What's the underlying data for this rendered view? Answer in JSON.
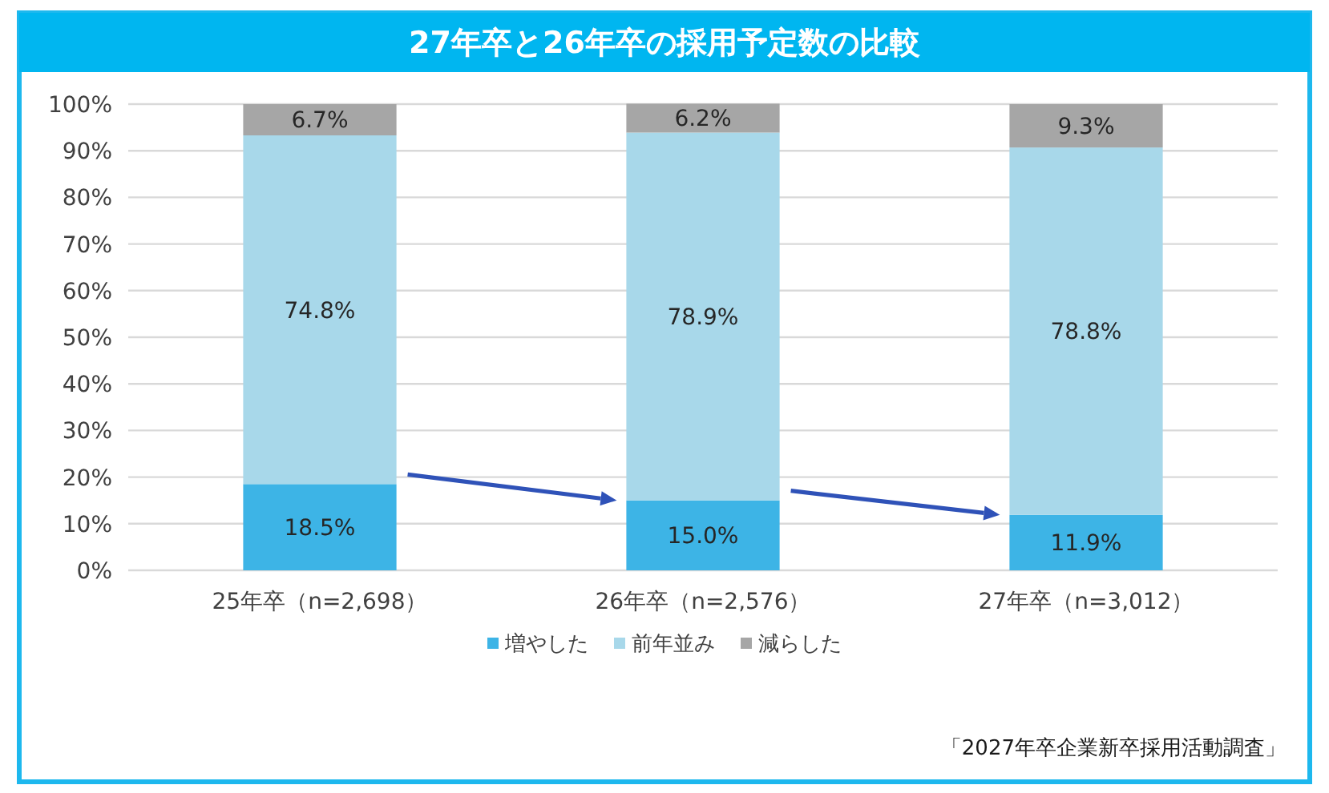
{
  "chart_data": {
    "type": "bar",
    "title": "27年卒と26年卒の採用予定数の比較",
    "categories": [
      "25年卒（n=2,698）",
      "26年卒（n=2,576）",
      "27年卒（n=3,012）"
    ],
    "stacked": true,
    "series": [
      {
        "name": "増やした",
        "color": "#3db4e6",
        "values": [
          18.5,
          15.0,
          11.9
        ],
        "value_labels": [
          "18.5%",
          "15.0%",
          "11.9%"
        ]
      },
      {
        "name": "前年並み",
        "color": "#a8d8ea",
        "values": [
          74.8,
          78.9,
          78.8
        ],
        "value_labels": [
          "74.8%",
          "78.9%",
          "78.8%"
        ]
      },
      {
        "name": "減らした",
        "color": "#a6a6a6",
        "values": [
          6.7,
          6.2,
          9.3
        ],
        "value_labels": [
          "6.7%",
          "6.2%",
          "9.3%"
        ]
      }
    ],
    "ylim": [
      0,
      100
    ],
    "yticks": [
      {
        "value": 0,
        "label": "0%"
      },
      {
        "value": 10,
        "label": "10%"
      },
      {
        "value": 20,
        "label": "20%"
      },
      {
        "value": 30,
        "label": "30%"
      },
      {
        "value": 40,
        "label": "40%"
      },
      {
        "value": 50,
        "label": "50%"
      },
      {
        "value": 60,
        "label": "60%"
      },
      {
        "value": 70,
        "label": "70%"
      },
      {
        "value": 80,
        "label": "80%"
      },
      {
        "value": 90,
        "label": "90%"
      },
      {
        "value": 100,
        "label": "100%"
      }
    ],
    "grid": "y",
    "legend": "bottom",
    "annotations": [
      "「2027年卒企業新卒採用活動調査」"
    ]
  }
}
